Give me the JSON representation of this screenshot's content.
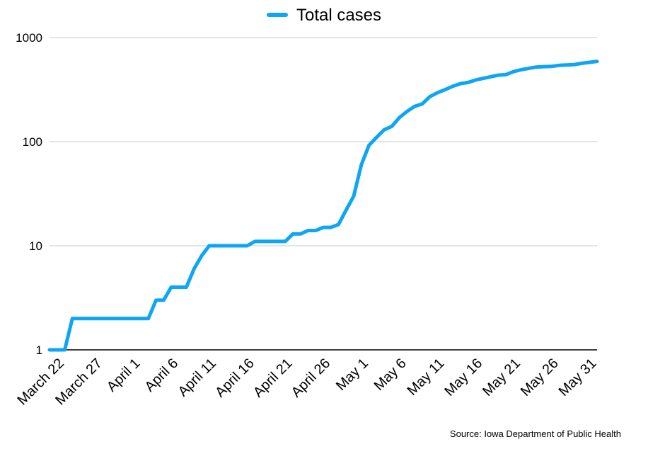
{
  "chart_data": {
    "type": "line",
    "yscale": "log",
    "ylim": [
      1,
      1000
    ],
    "yticks": [
      "1",
      "10",
      "100",
      "1000"
    ],
    "xlim": [
      "2020-03-20",
      "2020-05-31"
    ],
    "xticks": [
      {
        "date": "2020-03-22",
        "label": "March 22"
      },
      {
        "date": "2020-03-27",
        "label": "March 27"
      },
      {
        "date": "2020-04-01",
        "label": "April 1"
      },
      {
        "date": "2020-04-06",
        "label": "April 6"
      },
      {
        "date": "2020-04-11",
        "label": "April 11"
      },
      {
        "date": "2020-04-16",
        "label": "April 16"
      },
      {
        "date": "2020-04-21",
        "label": "April 21"
      },
      {
        "date": "2020-04-26",
        "label": "April 26"
      },
      {
        "date": "2020-05-01",
        "label": "May 1"
      },
      {
        "date": "2020-05-06",
        "label": "May 6"
      },
      {
        "date": "2020-05-11",
        "label": "May 11"
      },
      {
        "date": "2020-05-16",
        "label": "May 16"
      },
      {
        "date": "2020-05-21",
        "label": "May 21"
      },
      {
        "date": "2020-05-26",
        "label": "May 26"
      },
      {
        "date": "2020-05-31",
        "label": "May 31"
      }
    ],
    "grid": true,
    "legend_position": "top-center",
    "series": [
      {
        "name": "Total cases",
        "color": "#0ea5f5",
        "points": [
          [
            "2020-03-20",
            1
          ],
          [
            "2020-03-22",
            1
          ],
          [
            "2020-03-23",
            2
          ],
          [
            "2020-03-24",
            2
          ],
          [
            "2020-03-25",
            2
          ],
          [
            "2020-03-26",
            2
          ],
          [
            "2020-03-27",
            2
          ],
          [
            "2020-03-28",
            2
          ],
          [
            "2020-03-29",
            2
          ],
          [
            "2020-03-30",
            2
          ],
          [
            "2020-03-31",
            2
          ],
          [
            "2020-04-01",
            2
          ],
          [
            "2020-04-02",
            2
          ],
          [
            "2020-04-03",
            3
          ],
          [
            "2020-04-04",
            3
          ],
          [
            "2020-04-05",
            4
          ],
          [
            "2020-04-06",
            4
          ],
          [
            "2020-04-07",
            4
          ],
          [
            "2020-04-08",
            6
          ],
          [
            "2020-04-09",
            8
          ],
          [
            "2020-04-10",
            10
          ],
          [
            "2020-04-11",
            10
          ],
          [
            "2020-04-12",
            10
          ],
          [
            "2020-04-13",
            10
          ],
          [
            "2020-04-14",
            10
          ],
          [
            "2020-04-15",
            10
          ],
          [
            "2020-04-16",
            11
          ],
          [
            "2020-04-17",
            11
          ],
          [
            "2020-04-18",
            11
          ],
          [
            "2020-04-19",
            11
          ],
          [
            "2020-04-20",
            11
          ],
          [
            "2020-04-21",
            13
          ],
          [
            "2020-04-22",
            13
          ],
          [
            "2020-04-23",
            14
          ],
          [
            "2020-04-24",
            14
          ],
          [
            "2020-04-25",
            15
          ],
          [
            "2020-04-26",
            15
          ],
          [
            "2020-04-27",
            16
          ],
          [
            "2020-04-28",
            22
          ],
          [
            "2020-04-29",
            30
          ],
          [
            "2020-04-30",
            60
          ],
          [
            "2020-05-01",
            92
          ],
          [
            "2020-05-02",
            110
          ],
          [
            "2020-05-03",
            130
          ],
          [
            "2020-05-04",
            140
          ],
          [
            "2020-05-05",
            170
          ],
          [
            "2020-05-06",
            195
          ],
          [
            "2020-05-07",
            218
          ],
          [
            "2020-05-08",
            230
          ],
          [
            "2020-05-09",
            270
          ],
          [
            "2020-05-10",
            295
          ],
          [
            "2020-05-11",
            315
          ],
          [
            "2020-05-12",
            340
          ],
          [
            "2020-05-13",
            360
          ],
          [
            "2020-05-14",
            370
          ],
          [
            "2020-05-15",
            390
          ],
          [
            "2020-05-16",
            405
          ],
          [
            "2020-05-17",
            420
          ],
          [
            "2020-05-18",
            435
          ],
          [
            "2020-05-19",
            440
          ],
          [
            "2020-05-20",
            470
          ],
          [
            "2020-05-21",
            490
          ],
          [
            "2020-05-22",
            505
          ],
          [
            "2020-05-23",
            520
          ],
          [
            "2020-05-24",
            525
          ],
          [
            "2020-05-25",
            528
          ],
          [
            "2020-05-26",
            540
          ],
          [
            "2020-05-27",
            545
          ],
          [
            "2020-05-28",
            550
          ],
          [
            "2020-05-29",
            565
          ],
          [
            "2020-05-30",
            578
          ],
          [
            "2020-05-31",
            590
          ]
        ]
      }
    ],
    "source": "Source: Iowa Department of Public Health",
    "gridline_color": "#c8c8c8",
    "axis_color": "#000000"
  }
}
